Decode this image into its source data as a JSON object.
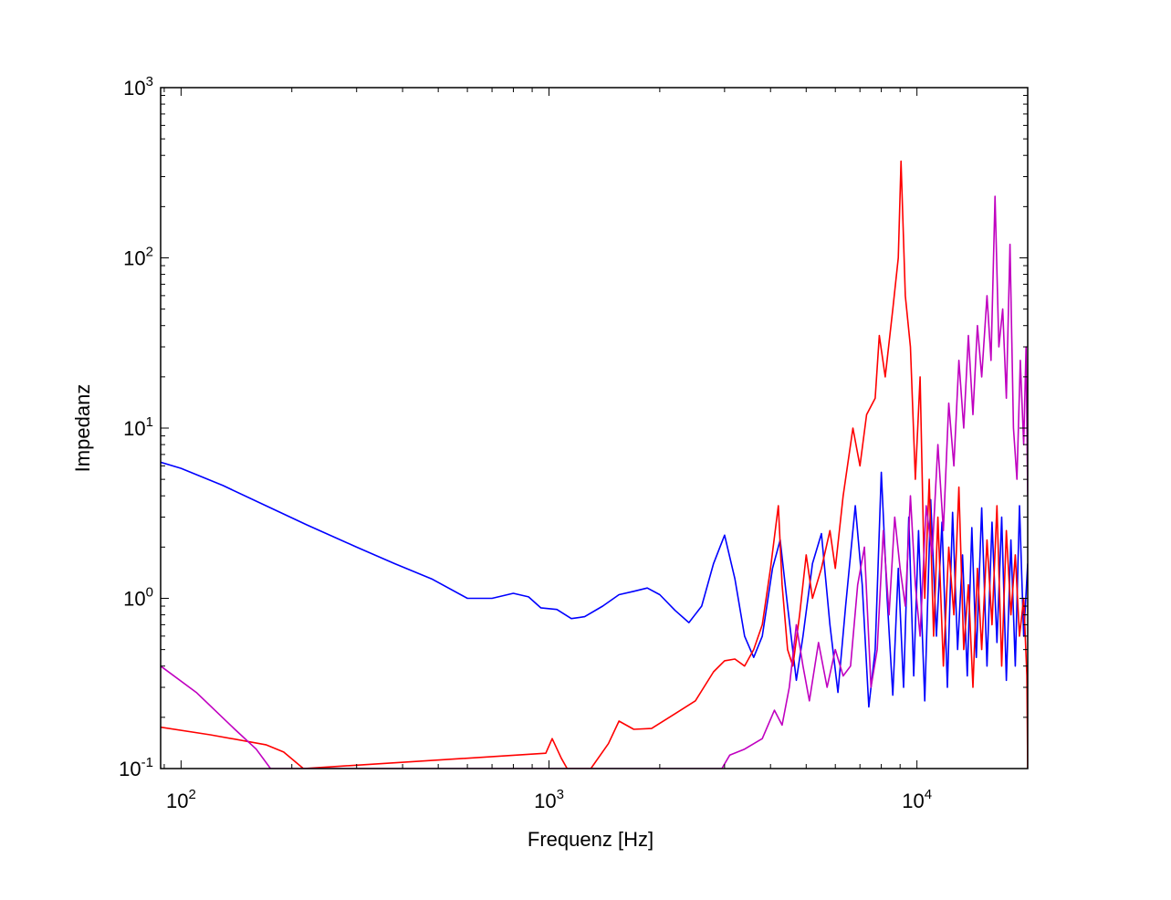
{
  "chart_data": {
    "type": "line",
    "xlabel": "Frequenz [Hz]",
    "ylabel": "Impedanz",
    "xscale": "log",
    "yscale": "log",
    "xlim": [
      88,
      20000
    ],
    "ylim": [
      0.1,
      1000
    ],
    "grid": false,
    "legend": "none",
    "x_ticks": [
      {
        "base": "10",
        "exp": "2"
      },
      {
        "base": "10",
        "exp": "3"
      },
      {
        "base": "10",
        "exp": "4"
      }
    ],
    "y_ticks": [
      {
        "base": "10",
        "exp": "-1"
      },
      {
        "base": "10",
        "exp": "0"
      },
      {
        "base": "10",
        "exp": "1"
      },
      {
        "base": "10",
        "exp": "2"
      },
      {
        "base": "10",
        "exp": "3"
      }
    ],
    "series": [
      {
        "color": "#0000ff",
        "points": [
          [
            88,
            6.3
          ],
          [
            100,
            5.8
          ],
          [
            130,
            4.6
          ],
          [
            170,
            3.5
          ],
          [
            220,
            2.7
          ],
          [
            300,
            2.0
          ],
          [
            380,
            1.6
          ],
          [
            480,
            1.3
          ],
          [
            600,
            1.0
          ],
          [
            700,
            1.0
          ],
          [
            800,
            1.07
          ],
          [
            880,
            1.02
          ],
          [
            950,
            0.88
          ],
          [
            1050,
            0.86
          ],
          [
            1150,
            0.76
          ],
          [
            1250,
            0.78
          ],
          [
            1400,
            0.9
          ],
          [
            1550,
            1.05
          ],
          [
            1700,
            1.1
          ],
          [
            1850,
            1.15
          ],
          [
            2000,
            1.05
          ],
          [
            2200,
            0.85
          ],
          [
            2400,
            0.72
          ],
          [
            2600,
            0.9
          ],
          [
            2800,
            1.6
          ],
          [
            3000,
            2.35
          ],
          [
            3200,
            1.3
          ],
          [
            3400,
            0.6
          ],
          [
            3600,
            0.45
          ],
          [
            3800,
            0.6
          ],
          [
            4050,
            1.5
          ],
          [
            4250,
            2.2
          ],
          [
            4450,
            0.9
          ],
          [
            4700,
            0.33
          ],
          [
            4900,
            0.6
          ],
          [
            5200,
            1.6
          ],
          [
            5500,
            2.4
          ],
          [
            5800,
            0.7
          ],
          [
            6100,
            0.28
          ],
          [
            6400,
            0.9
          ],
          [
            6800,
            3.5
          ],
          [
            7100,
            1.2
          ],
          [
            7400,
            0.23
          ],
          [
            7700,
            0.5
          ],
          [
            8000,
            5.5
          ],
          [
            8300,
            1.0
          ],
          [
            8600,
            0.27
          ],
          [
            8900,
            1.5
          ],
          [
            9200,
            0.3
          ],
          [
            9500,
            3.0
          ],
          [
            9800,
            0.35
          ],
          [
            10100,
            2.5
          ],
          [
            10500,
            0.25
          ],
          [
            10900,
            3.8
          ],
          [
            11300,
            0.6
          ],
          [
            11700,
            2.8
          ],
          [
            12100,
            0.3
          ],
          [
            12500,
            3.2
          ],
          [
            12900,
            0.5
          ],
          [
            13300,
            1.8
          ],
          [
            13700,
            0.35
          ],
          [
            14100,
            2.6
          ],
          [
            14500,
            0.45
          ],
          [
            15000,
            3.4
          ],
          [
            15500,
            0.4
          ],
          [
            16000,
            2.8
          ],
          [
            16500,
            0.55
          ],
          [
            17000,
            3.0
          ],
          [
            17500,
            0.33
          ],
          [
            18000,
            2.2
          ],
          [
            18500,
            0.4
          ],
          [
            19000,
            3.5
          ],
          [
            19500,
            0.6
          ],
          [
            20000,
            1.6
          ]
        ]
      },
      {
        "color": "#ff0000",
        "points": [
          [
            88,
            0.175
          ],
          [
            120,
            0.158
          ],
          [
            170,
            0.138
          ],
          [
            190,
            0.125
          ],
          [
            215,
            0.1
          ],
          [
            980,
            0.123
          ],
          [
            1020,
            0.15
          ],
          [
            1080,
            0.115
          ],
          [
            1120,
            0.1
          ],
          [
            1300,
            0.1
          ],
          [
            1450,
            0.14
          ],
          [
            1550,
            0.19
          ],
          [
            1700,
            0.17
          ],
          [
            1900,
            0.172
          ],
          [
            2200,
            0.21
          ],
          [
            2500,
            0.25
          ],
          [
            2800,
            0.37
          ],
          [
            3000,
            0.43
          ],
          [
            3200,
            0.44
          ],
          [
            3400,
            0.4
          ],
          [
            3600,
            0.5
          ],
          [
            3800,
            0.7
          ],
          [
            4000,
            1.5
          ],
          [
            4200,
            3.5
          ],
          [
            4300,
            1.2
          ],
          [
            4450,
            0.5
          ],
          [
            4600,
            0.4
          ],
          [
            4800,
            0.8
          ],
          [
            5000,
            1.8
          ],
          [
            5200,
            1.0
          ],
          [
            5500,
            1.5
          ],
          [
            5800,
            2.5
          ],
          [
            6000,
            1.5
          ],
          [
            6300,
            4.0
          ],
          [
            6700,
            10.0
          ],
          [
            7000,
            6.0
          ],
          [
            7300,
            12.0
          ],
          [
            7700,
            15.0
          ],
          [
            7900,
            35.0
          ],
          [
            8200,
            20.0
          ],
          [
            8600,
            50.0
          ],
          [
            8900,
            100.0
          ],
          [
            9050,
            370.0
          ],
          [
            9300,
            60.0
          ],
          [
            9600,
            30.0
          ],
          [
            9900,
            5.0
          ],
          [
            10200,
            20.0
          ],
          [
            10500,
            1.0
          ],
          [
            10800,
            5.0
          ],
          [
            11100,
            0.6
          ],
          [
            11400,
            3.0
          ],
          [
            11800,
            0.4
          ],
          [
            12200,
            2.0
          ],
          [
            12600,
            0.8
          ],
          [
            13000,
            4.5
          ],
          [
            13400,
            0.5
          ],
          [
            13800,
            1.2
          ],
          [
            14200,
            0.3
          ],
          [
            14600,
            1.5
          ],
          [
            15000,
            0.5
          ],
          [
            15500,
            2.2
          ],
          [
            16000,
            0.7
          ],
          [
            16500,
            3.5
          ],
          [
            17000,
            0.4
          ],
          [
            17500,
            2.5
          ],
          [
            18000,
            0.8
          ],
          [
            18500,
            1.8
          ],
          [
            19000,
            0.6
          ],
          [
            19500,
            1.0
          ],
          [
            19900,
            0.35
          ],
          [
            20000,
            0.1
          ]
        ]
      },
      {
        "color": "#c000c0",
        "points": [
          [
            88,
            0.4
          ],
          [
            110,
            0.28
          ],
          [
            140,
            0.17
          ],
          [
            160,
            0.13
          ],
          [
            175,
            0.1
          ],
          [
            2950,
            0.1
          ],
          [
            3100,
            0.12
          ],
          [
            3400,
            0.13
          ],
          [
            3800,
            0.15
          ],
          [
            4100,
            0.22
          ],
          [
            4300,
            0.18
          ],
          [
            4500,
            0.3
          ],
          [
            4700,
            0.7
          ],
          [
            4900,
            0.4
          ],
          [
            5100,
            0.25
          ],
          [
            5400,
            0.55
          ],
          [
            5700,
            0.3
          ],
          [
            6000,
            0.5
          ],
          [
            6300,
            0.35
          ],
          [
            6600,
            0.4
          ],
          [
            6900,
            1.2
          ],
          [
            7200,
            2.0
          ],
          [
            7500,
            0.3
          ],
          [
            7800,
            0.5
          ],
          [
            8100,
            2.5
          ],
          [
            8400,
            0.8
          ],
          [
            8700,
            3.0
          ],
          [
            9000,
            1.5
          ],
          [
            9300,
            0.9
          ],
          [
            9600,
            4.0
          ],
          [
            9900,
            1.2
          ],
          [
            10200,
            0.6
          ],
          [
            10600,
            3.5
          ],
          [
            11000,
            1.8
          ],
          [
            11400,
            8.0
          ],
          [
            11800,
            2.5
          ],
          [
            12200,
            14.0
          ],
          [
            12600,
            6.0
          ],
          [
            13000,
            25.0
          ],
          [
            13400,
            10.0
          ],
          [
            13800,
            35.0
          ],
          [
            14200,
            12.0
          ],
          [
            14600,
            40.0
          ],
          [
            15000,
            20.0
          ],
          [
            15500,
            60.0
          ],
          [
            15900,
            25.0
          ],
          [
            16300,
            230.0
          ],
          [
            16700,
            30.0
          ],
          [
            17100,
            50.0
          ],
          [
            17500,
            15.0
          ],
          [
            17900,
            120.0
          ],
          [
            18300,
            10.0
          ],
          [
            18700,
            5.0
          ],
          [
            19100,
            25.0
          ],
          [
            19500,
            8.0
          ],
          [
            19800,
            30.0
          ],
          [
            20000,
            4.0
          ]
        ]
      }
    ]
  }
}
